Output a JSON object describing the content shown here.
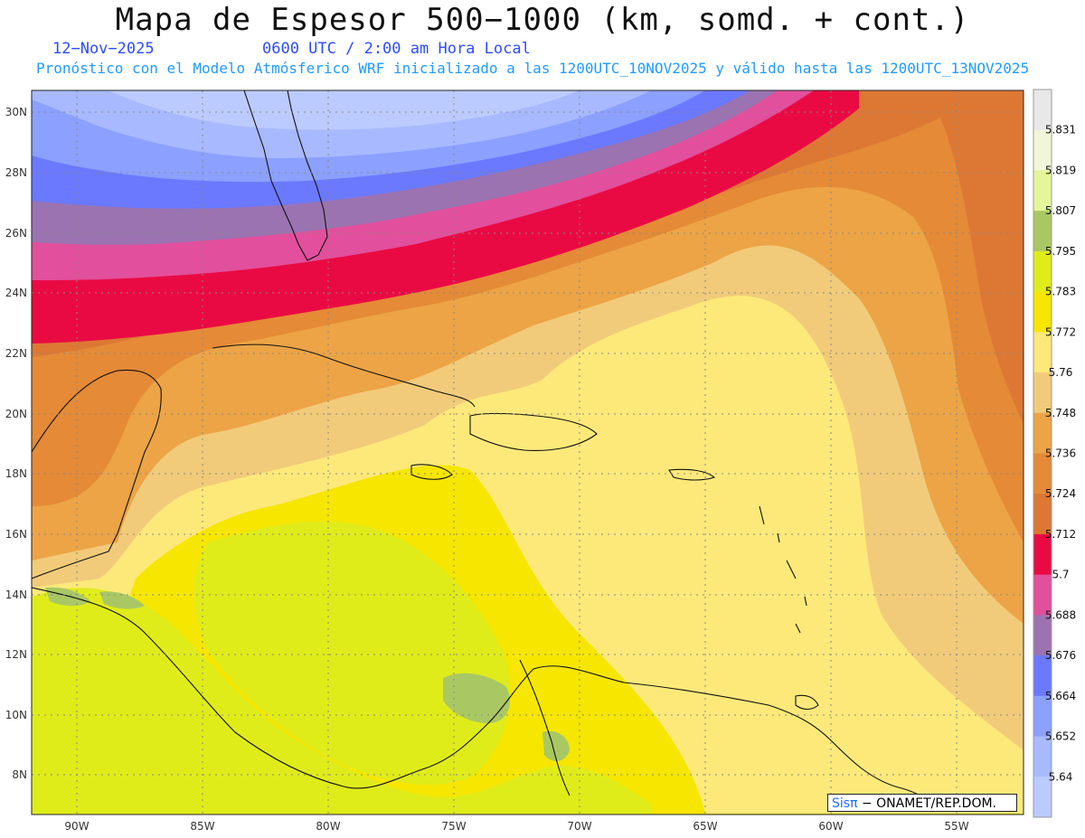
{
  "header": {
    "title": "Mapa de Espesor 500−1000 (km, somd. + cont.)",
    "date": "12−Nov−2025",
    "time": "0600 UTC / 2:00 am Hora Local",
    "subtitle": "Pronóstico con el Modelo Atmósferico WRF inicializado a las 1200UTC_10NOV2025 y válido hasta las  1200UTC_13NOV2025"
  },
  "axes": {
    "lat_ticks": [
      "30N",
      "28N",
      "26N",
      "24N",
      "22N",
      "20N",
      "18N",
      "16N",
      "14N",
      "12N",
      "10N",
      "8N"
    ],
    "lon_ticks": [
      "90W",
      "85W",
      "80W",
      "75W",
      "70W",
      "65W",
      "60W",
      "55W"
    ]
  },
  "colorbar": {
    "labels": [
      "5.831",
      "5.819",
      "5.807",
      "5.795",
      "5.783",
      "5.772",
      "5.76",
      "5.748",
      "5.736",
      "5.724",
      "5.712",
      "5.7",
      "5.688",
      "5.676",
      "5.664",
      "5.652",
      "5.64"
    ],
    "colors": [
      "#e8e8e8",
      "#f2f6d8",
      "#e4f59a",
      "#a9c864",
      "#e0ec1a",
      "#f6e600",
      "#fde97a",
      "#f1cb7a",
      "#eca446",
      "#e58a36",
      "#dd7834",
      "#ea0a43",
      "#e24f9c",
      "#9b73b1",
      "#6a79ff",
      "#8ba0ff",
      "#a8b9ff",
      "#bccbff"
    ]
  },
  "credit": {
    "brand": "Sisπ",
    "text": "− ONAMET/REP.DOM."
  }
}
